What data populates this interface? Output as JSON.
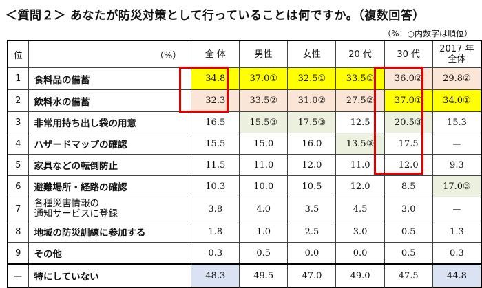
{
  "title": "＜質問２＞ あなたが防災対策として行っていることは何ですか。（複数回答）",
  "note": "（%：○内数字は順位）",
  "colors": {
    "yellow": "#ffff00",
    "pink": "#fbe5d6",
    "green": "#ebf1de",
    "blue": "#dae3f3",
    "highlight": "#e00000"
  },
  "header": {
    "rank": "位",
    "label": "（%）",
    "columns": [
      "全 体",
      "男性",
      "女性",
      "20 代",
      "30 代",
      "2017 年\n全体"
    ]
  },
  "rows": [
    {
      "rank": "1",
      "label": "食料品の備蓄",
      "values": [
        {
          "v": "34.8",
          "bg": "y"
        },
        {
          "v": "37.0①",
          "bg": "y"
        },
        {
          "v": "32.5①",
          "bg": "y"
        },
        {
          "v": "33.5①",
          "bg": "y"
        },
        {
          "v": "36.0②",
          "bg": "p"
        },
        {
          "v": "29.8②",
          "bg": "p"
        }
      ]
    },
    {
      "rank": "2",
      "label": "飲料水の備蓄",
      "values": [
        {
          "v": "32.3",
          "bg": "p"
        },
        {
          "v": "33.5②",
          "bg": "p"
        },
        {
          "v": "31.0②",
          "bg": "p"
        },
        {
          "v": "27.5②",
          "bg": "p"
        },
        {
          "v": "37.0①",
          "bg": "y"
        },
        {
          "v": "34.0①",
          "bg": "y"
        }
      ]
    },
    {
      "rank": "3",
      "label": "非常用持ち出し袋の用意",
      "values": [
        {
          "v": "16.5"
        },
        {
          "v": "15.5③",
          "bg": "g"
        },
        {
          "v": "17.5③",
          "bg": "g"
        },
        {
          "v": "12.5"
        },
        {
          "v": "20.5③",
          "bg": "g"
        },
        {
          "v": "15.3"
        }
      ]
    },
    {
      "rank": "4",
      "label": "ハザードマップの確認",
      "values": [
        {
          "v": "15.5"
        },
        {
          "v": "15.0"
        },
        {
          "v": "16.0"
        },
        {
          "v": "13.5③",
          "bg": "g"
        },
        {
          "v": "17.5"
        },
        {
          "v": "ー"
        }
      ]
    },
    {
      "rank": "5",
      "label": "家具などの転倒防止",
      "values": [
        {
          "v": "11.5"
        },
        {
          "v": "11.0"
        },
        {
          "v": "12.0"
        },
        {
          "v": "11.0"
        },
        {
          "v": "12.0"
        },
        {
          "v": "9.3"
        }
      ]
    },
    {
      "rank": "6",
      "label": "避難場所・経路の確認",
      "values": [
        {
          "v": "10.3"
        },
        {
          "v": "10.0"
        },
        {
          "v": "10.5"
        },
        {
          "v": "12.0"
        },
        {
          "v": "8.5"
        },
        {
          "v": "17.0③",
          "bg": "g"
        }
      ]
    },
    {
      "rank": "7",
      "label": "各種災害情報の\n通知サービスに登録",
      "values": [
        {
          "v": "3.8"
        },
        {
          "v": "4.0"
        },
        {
          "v": "3.5"
        },
        {
          "v": "4.5"
        },
        {
          "v": "3.0"
        },
        {
          "v": "ー"
        }
      ]
    },
    {
      "rank": "8",
      "label": "地域の防災訓練に参加する",
      "values": [
        {
          "v": "1.8"
        },
        {
          "v": "1.0"
        },
        {
          "v": "2.5"
        },
        {
          "v": "3.0"
        },
        {
          "v": "0.5"
        },
        {
          "v": "1.3"
        }
      ]
    },
    {
      "rank": "9",
      "label": "その他",
      "values": [
        {
          "v": "0.3"
        },
        {
          "v": "0.5"
        },
        {
          "v": "0.0"
        },
        {
          "v": "0.0"
        },
        {
          "v": "0.5"
        },
        {
          "v": "0.3"
        }
      ]
    },
    {
      "rank": "ー",
      "label": "特にしていない",
      "values": [
        {
          "v": "48.3",
          "bg": "b"
        },
        {
          "v": "49.5"
        },
        {
          "v": "47.0"
        },
        {
          "v": "49.0"
        },
        {
          "v": "47.5"
        },
        {
          "v": "44.8",
          "bg": "b"
        }
      ]
    }
  ]
}
